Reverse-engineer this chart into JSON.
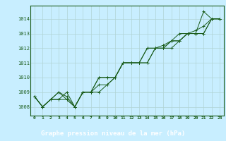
{
  "title": "Graphe pression niveau de la mer (hPa)",
  "bg_color": "#c8eeff",
  "title_bg": "#2d6e2d",
  "title_fg": "#ffffff",
  "grid_color": "#b0d4d4",
  "line_color": "#1a5c1a",
  "x_ticks": [
    0,
    1,
    2,
    3,
    4,
    5,
    6,
    7,
    8,
    9,
    10,
    11,
    12,
    13,
    14,
    15,
    16,
    17,
    18,
    19,
    20,
    21,
    22,
    23
  ],
  "ylim": [
    1007.4,
    1014.9
  ],
  "yticks": [
    1008,
    1009,
    1010,
    1011,
    1012,
    1013,
    1014
  ],
  "series": [
    [
      1008.7,
      1008.0,
      1008.5,
      1009.0,
      1008.7,
      1008.0,
      1009.0,
      1009.0,
      1009.5,
      1009.5,
      1010.0,
      1011.0,
      1011.0,
      1011.0,
      1011.0,
      1012.0,
      1012.0,
      1012.0,
      1012.5,
      1013.0,
      1013.0,
      1014.5,
      1014.0,
      1014.0
    ],
    [
      1008.7,
      1008.0,
      1008.5,
      1008.5,
      1009.0,
      1008.0,
      1009.0,
      1009.0,
      1009.0,
      1009.5,
      1010.0,
      1011.0,
      1011.0,
      1011.0,
      1011.0,
      1012.0,
      1012.0,
      1012.5,
      1012.5,
      1013.0,
      1013.0,
      1013.0,
      1014.0,
      1014.0
    ],
    [
      1008.7,
      1008.0,
      1008.5,
      1009.0,
      1008.5,
      1008.0,
      1009.0,
      1009.0,
      1010.0,
      1010.0,
      1010.0,
      1011.0,
      1011.0,
      1011.0,
      1012.0,
      1012.0,
      1012.0,
      1012.5,
      1012.5,
      1013.0,
      1013.0,
      1013.0,
      1014.0,
      1014.0
    ],
    [
      1008.7,
      1008.0,
      1008.5,
      1008.5,
      1008.5,
      1008.0,
      1009.0,
      1009.0,
      1010.0,
      1010.0,
      1010.0,
      1011.0,
      1011.0,
      1011.0,
      1012.0,
      1012.0,
      1012.2,
      1012.5,
      1013.0,
      1013.0,
      1013.2,
      1013.5,
      1014.0,
      1014.0
    ]
  ]
}
